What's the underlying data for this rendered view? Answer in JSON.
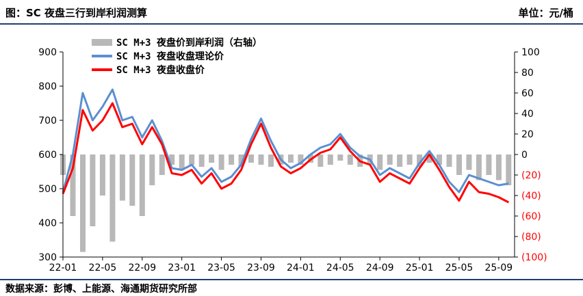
{
  "header": {
    "title": "图：SC 夜盘三行到岸利润测算",
    "unit": "单位：元/桶"
  },
  "source": "数据来源：彭博、上能源、海通期货研究所部",
  "colors": {
    "profit": "#b8b8b8",
    "theory": "#5b8fd0",
    "price": "#ff0000",
    "right_axis": "#ff0000",
    "rule": "#1f3f73"
  },
  "chart_data": {
    "type": "line",
    "left_axis": {
      "ylim": [
        300,
        900
      ],
      "ticks": [
        "300",
        "400",
        "500",
        "600",
        "700",
        "800",
        "900"
      ]
    },
    "right_axis": {
      "ylim": [
        -100,
        100
      ],
      "ticks": [
        "(100)",
        "(80)",
        "(60)",
        "(40)",
        "(20)",
        "0",
        "20",
        "40",
        "60",
        "80",
        "100"
      ]
    },
    "x_ticks": [
      "22-01",
      "22-05",
      "22-09",
      "23-01",
      "23-05",
      "23-09",
      "24-01",
      "24-05",
      "24-09",
      "25-01",
      "25-05",
      "25-09"
    ],
    "legend": [
      "SC M+3 夜盘价到岸利润（右轴）",
      "SC M+3 夜盘收盘理论价",
      "SC M+3 夜盘收盘价"
    ],
    "series": [
      {
        "name": "SC M+3 夜盘收盘理论价",
        "axis": "left",
        "x": [
          "22-01",
          "22-02",
          "22-03",
          "22-04",
          "22-05",
          "22-06",
          "22-07",
          "22-08",
          "22-09",
          "22-10",
          "22-11",
          "22-12",
          "23-01",
          "23-02",
          "23-03",
          "23-04",
          "23-05",
          "23-06",
          "23-07",
          "23-08",
          "23-09",
          "23-10",
          "23-11",
          "23-12",
          "24-01",
          "24-02",
          "24-03",
          "24-04",
          "24-05",
          "24-06",
          "24-07",
          "24-08",
          "24-09",
          "24-10",
          "24-11",
          "24-12",
          "25-01",
          "25-02",
          "25-03",
          "25-04",
          "25-05",
          "25-06",
          "25-07",
          "25-08",
          "25-09",
          "25-10"
        ],
        "values": [
          490,
          600,
          780,
          700,
          740,
          790,
          700,
          710,
          650,
          700,
          640,
          560,
          555,
          570,
          535,
          560,
          520,
          535,
          570,
          645,
          705,
          640,
          585,
          560,
          575,
          600,
          620,
          630,
          660,
          620,
          595,
          585,
          540,
          560,
          545,
          530,
          575,
          610,
          570,
          520,
          490,
          540,
          530,
          520,
          510,
          515
        ]
      },
      {
        "name": "SC M+3 夜盘收盘价",
        "axis": "left",
        "x": [
          "22-01",
          "22-02",
          "22-03",
          "22-04",
          "22-05",
          "22-06",
          "22-07",
          "22-08",
          "22-09",
          "22-10",
          "22-11",
          "22-12",
          "23-01",
          "23-02",
          "23-03",
          "23-04",
          "23-05",
          "23-06",
          "23-07",
          "23-08",
          "23-09",
          "23-10",
          "23-11",
          "23-12",
          "24-01",
          "24-02",
          "24-03",
          "24-04",
          "24-05",
          "24-06",
          "24-07",
          "24-08",
          "24-09",
          "24-10",
          "24-11",
          "24-12",
          "25-01",
          "25-02",
          "25-03",
          "25-04",
          "25-05",
          "25-06",
          "25-07",
          "25-08",
          "25-09",
          "25-10"
        ],
        "values": [
          485,
          560,
          730,
          670,
          700,
          750,
          680,
          690,
          630,
          680,
          630,
          545,
          540,
          555,
          515,
          545,
          500,
          515,
          555,
          630,
          690,
          620,
          565,
          545,
          560,
          585,
          605,
          615,
          650,
          610,
          580,
          570,
          520,
          545,
          530,
          515,
          560,
          600,
          555,
          505,
          465,
          520,
          490,
          485,
          475,
          460
        ]
      },
      {
        "name": "SC M+3 夜盘价到岸利润（右轴）",
        "axis": "right",
        "kind": "bar",
        "x": [
          "22-01",
          "22-02",
          "22-03",
          "22-04",
          "22-05",
          "22-06",
          "22-07",
          "22-08",
          "22-09",
          "22-10",
          "22-11",
          "22-12",
          "23-01",
          "23-02",
          "23-03",
          "23-04",
          "23-05",
          "23-06",
          "23-07",
          "23-08",
          "23-09",
          "23-10",
          "23-11",
          "23-12",
          "24-01",
          "24-02",
          "24-03",
          "24-04",
          "24-05",
          "24-06",
          "24-07",
          "24-08",
          "24-09",
          "24-10",
          "24-11",
          "24-12",
          "25-01",
          "25-02",
          "25-03",
          "25-04",
          "25-05",
          "25-06",
          "25-07",
          "25-08",
          "25-09",
          "25-10"
        ],
        "values": [
          -20,
          -60,
          -95,
          -70,
          -40,
          -85,
          -45,
          -50,
          -60,
          -30,
          -20,
          -10,
          -15,
          -10,
          -12,
          -8,
          -15,
          -10,
          -12,
          -8,
          -10,
          -12,
          -10,
          -8,
          -10,
          -8,
          -12,
          -10,
          -6,
          -10,
          -12,
          -10,
          -15,
          -10,
          -12,
          -10,
          -12,
          -8,
          -10,
          -12,
          -20,
          -15,
          -25,
          -20,
          -25,
          -30
        ]
      }
    ]
  }
}
